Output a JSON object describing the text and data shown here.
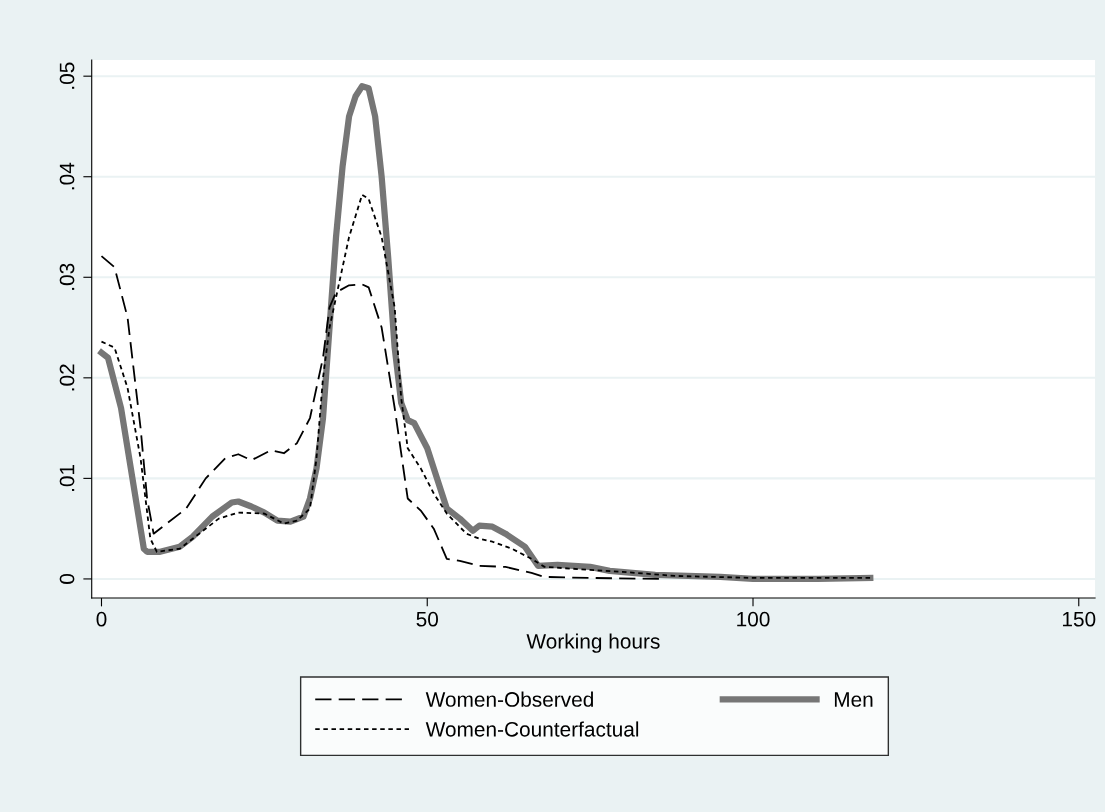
{
  "chart_data": {
    "type": "line",
    "xlabel": "Working hours",
    "xlim": [
      -1.5,
      152.5
    ],
    "ylim": [
      -0.0019,
      0.0516
    ],
    "xticks": [
      0,
      50,
      100,
      150
    ],
    "yticks": [
      {
        "value": 0,
        "label": "0"
      },
      {
        "value": 0.01,
        "label": ".01"
      },
      {
        "value": 0.02,
        "label": ".02"
      },
      {
        "value": 0.03,
        "label": ".03"
      },
      {
        "value": 0.04,
        "label": ".04"
      },
      {
        "value": 0.05,
        "label": ".05"
      }
    ],
    "grid": "y",
    "legend": "bottom",
    "series": [
      {
        "name": "Women-Observed",
        "color": "#000000",
        "line_style": "dashed",
        "x": [
          0,
          2,
          4,
          6,
          7,
          8,
          10,
          13,
          16,
          19,
          21,
          23,
          26,
          28,
          30,
          32,
          34,
          35,
          36,
          38,
          40,
          41,
          43,
          45,
          47,
          49,
          51,
          53,
          55,
          58,
          62,
          66,
          68,
          75,
          86
        ],
        "values": [
          0.0321,
          0.031,
          0.026,
          0.015,
          0.008,
          0.0045,
          0.0055,
          0.007,
          0.01,
          0.012,
          0.0124,
          0.0118,
          0.0128,
          0.0125,
          0.0135,
          0.016,
          0.022,
          0.027,
          0.0285,
          0.0292,
          0.0293,
          0.029,
          0.025,
          0.017,
          0.008,
          0.0068,
          0.005,
          0.002,
          0.0018,
          0.0013,
          0.0012,
          0.0006,
          0.0002,
          0.0001,
          0.0
        ]
      },
      {
        "name": "Women-Counterfactual",
        "color": "#000000",
        "line_style": "dotted",
        "x": [
          0,
          2,
          4,
          6,
          7.5,
          8.5,
          12,
          15,
          18,
          21,
          25,
          28,
          30,
          32,
          33,
          34,
          35,
          36,
          38,
          40,
          41,
          43,
          45,
          46,
          47,
          49,
          51,
          53,
          56,
          58,
          60,
          63,
          66,
          68,
          75,
          80,
          88,
          100,
          118
        ],
        "values": [
          0.0236,
          0.023,
          0.019,
          0.012,
          0.004,
          0.0027,
          0.003,
          0.0045,
          0.006,
          0.0066,
          0.0065,
          0.0055,
          0.0058,
          0.007,
          0.012,
          0.02,
          0.025,
          0.028,
          0.034,
          0.0382,
          0.0378,
          0.034,
          0.027,
          0.018,
          0.013,
          0.011,
          0.0085,
          0.0065,
          0.0045,
          0.004,
          0.0037,
          0.003,
          0.002,
          0.0012,
          0.0009,
          0.0007,
          0.0003,
          0.0001,
          0.0001
        ]
      },
      {
        "name": "Men",
        "color": "#767676",
        "line_style": "solid",
        "x": [
          0,
          1,
          3,
          5,
          6.5,
          7,
          9,
          12,
          14,
          17,
          20,
          21,
          23,
          25,
          27,
          29,
          31,
          32,
          33,
          34,
          35,
          36,
          37,
          38,
          39,
          40,
          41,
          42,
          43,
          44,
          45,
          46,
          47,
          48,
          50,
          52,
          53,
          55,
          57,
          58,
          60,
          62,
          65,
          67,
          70,
          75,
          78,
          85,
          90,
          95,
          100,
          110,
          118
        ],
        "values": [
          0.0225,
          0.022,
          0.017,
          0.009,
          0.003,
          0.0027,
          0.0027,
          0.0032,
          0.0042,
          0.0062,
          0.0076,
          0.0077,
          0.0072,
          0.0066,
          0.0058,
          0.0057,
          0.0062,
          0.008,
          0.011,
          0.016,
          0.025,
          0.034,
          0.041,
          0.046,
          0.048,
          0.049,
          0.0488,
          0.046,
          0.04,
          0.032,
          0.023,
          0.0175,
          0.0158,
          0.0155,
          0.013,
          0.009,
          0.007,
          0.006,
          0.0048,
          0.0053,
          0.0052,
          0.0045,
          0.0032,
          0.0013,
          0.0014,
          0.0012,
          0.0008,
          0.0004,
          0.0003,
          0.0002,
          0.0,
          0.0,
          0.0001
        ]
      }
    ]
  }
}
